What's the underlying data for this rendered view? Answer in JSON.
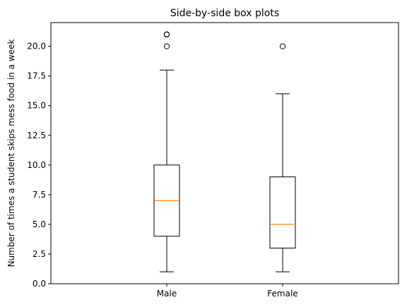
{
  "chart_data": {
    "type": "box",
    "title": "Side-by-side box plots",
    "xlabel": "",
    "ylabel": "Number of times a student skips mess food in a week",
    "categories": [
      "Male",
      "Female"
    ],
    "ylim": [
      0,
      22
    ],
    "yticks": [
      0.0,
      2.5,
      5.0,
      7.5,
      10.0,
      12.5,
      15.0,
      17.5,
      20.0
    ],
    "ytick_labels": [
      "0.0",
      "2.5",
      "5.0",
      "7.5",
      "10.0",
      "12.5",
      "15.0",
      "17.5",
      "20.0"
    ],
    "grid": false,
    "boxes": [
      {
        "category": "Male",
        "whisker_low": 1,
        "q1": 4,
        "median": 7,
        "q3": 10,
        "whisker_high": 18,
        "outliers": [
          20,
          21,
          21,
          21
        ]
      },
      {
        "category": "Female",
        "whisker_low": 1,
        "q1": 3,
        "median": 5,
        "q3": 9,
        "whisker_high": 16,
        "outliers": [
          20
        ]
      }
    ],
    "colors": {
      "box": "#000000",
      "median": "#ff7f0e",
      "outlier": "#000000"
    }
  }
}
